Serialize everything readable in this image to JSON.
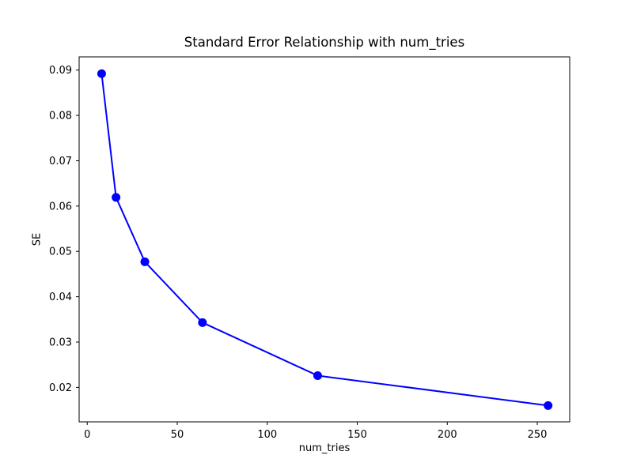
{
  "figure": {
    "title": "Standard Error Relationship with num_tries",
    "xlabel": "num_tries",
    "ylabel": "SE"
  },
  "chart_data": {
    "type": "line",
    "title": "Standard Error Relationship with num_tries",
    "xlabel": "num_tries",
    "ylabel": "SE",
    "x": [
      8,
      16,
      32,
      64,
      128,
      256
    ],
    "y": [
      0.0892,
      0.0619,
      0.0477,
      0.0343,
      0.0226,
      0.016
    ],
    "xticks": [
      0,
      50,
      100,
      150,
      200,
      250
    ],
    "xtick_labels": [
      "0",
      "50",
      "100",
      "150",
      "200",
      "250"
    ],
    "yticks": [
      0.02,
      0.03,
      0.04,
      0.05,
      0.06,
      0.07,
      0.08,
      0.09
    ],
    "ytick_labels": [
      "0.02",
      "0.03",
      "0.04",
      "0.05",
      "0.06",
      "0.07",
      "0.08",
      "0.09"
    ],
    "xlim": [
      -4.5,
      268
    ],
    "ylim": [
      0.0124,
      0.0929
    ],
    "grid": false,
    "legend_position": "none",
    "line_color": "#0000ff",
    "marker": "o",
    "marker_color": "#0000ff",
    "axis_color": "#000000",
    "background_color": "#ffffff"
  }
}
